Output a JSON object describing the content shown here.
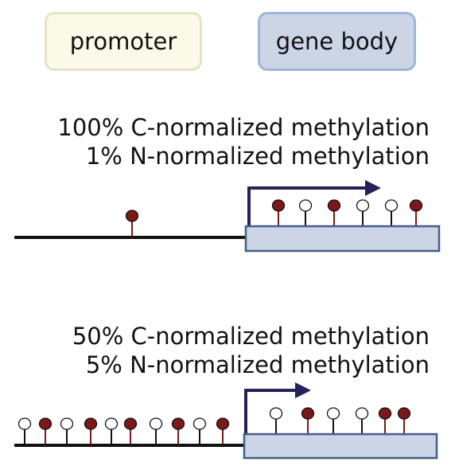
{
  "legend": {
    "promoter_label": "promoter",
    "gene_body_label": "gene body"
  },
  "colors": {
    "promoter_fill": "#fbf9e8",
    "gene_body_fill": "#ccd5e6",
    "gene_body_border": "#445d86",
    "methylated": "#7b1818",
    "arrow": "#242258",
    "line": "#111111"
  },
  "panels": [
    {
      "c_normalized_text": "100% C-normalized methylation",
      "n_normalized_text": "1% N-normalized methylation",
      "promoter_sites": [
        "methylated"
      ],
      "gene_body_sites": [
        "methylated",
        "unmethylated",
        "methylated",
        "unmethylated",
        "unmethylated",
        "methylated"
      ]
    },
    {
      "c_normalized_text": "50% C-normalized methylation",
      "n_normalized_text": "5% N-normalized methylation",
      "promoter_sites": [
        "unmethylated",
        "methylated",
        "unmethylated",
        "methylated",
        "unmethylated",
        "methylated",
        "unmethylated",
        "methylated",
        "unmethylated",
        "methylated"
      ],
      "gene_body_sites": [
        "unmethylated",
        "methylated",
        "unmethylated",
        "unmethylated",
        "methylated",
        "methylated"
      ]
    }
  ]
}
